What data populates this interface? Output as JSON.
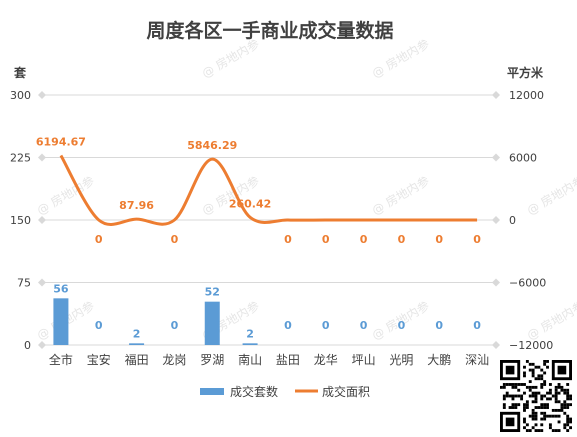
{
  "chart_data": {
    "type": "bar+line",
    "title": "周度各区一手商业成交量数据",
    "categories": [
      "全市",
      "宝安",
      "福田",
      "龙岗",
      "罗湖",
      "南山",
      "盐田",
      "龙华",
      "坪山",
      "光明",
      "大鹏",
      "深汕"
    ],
    "series": [
      {
        "name": "成交套数",
        "type": "bar",
        "axis": "left",
        "color": "#5b9bd5",
        "values": [
          56,
          0,
          2,
          0,
          52,
          2,
          0,
          0,
          0,
          0,
          0,
          0
        ],
        "labels": [
          "56",
          "0",
          "2",
          "0",
          "52",
          "2",
          "0",
          "0",
          "0",
          "0",
          "0",
          "0"
        ]
      },
      {
        "name": "成交面积",
        "type": "line",
        "axis": "right",
        "color": "#ed7d31",
        "values": [
          6194.67,
          0,
          87.96,
          0,
          5846.29,
          260.42,
          0,
          0,
          0,
          0,
          0,
          0
        ],
        "labels": [
          "6194.67",
          "0",
          "87.96",
          "0",
          "5846.29",
          "260.42",
          "0",
          "0",
          "0",
          "0",
          "0",
          "0"
        ]
      }
    ],
    "left_axis": {
      "unit": "套",
      "min": 0,
      "max": 300,
      "ticks": [
        "300",
        "225",
        "150",
        "75",
        "0"
      ]
    },
    "right_axis": {
      "unit": "平方米",
      "min": -12000,
      "max": 12000,
      "ticks": [
        "12000",
        "6000",
        "0",
        "−6000",
        "−12000"
      ]
    },
    "grid": true,
    "legend": "bottom-center",
    "watermark": "@ 房地内参"
  }
}
